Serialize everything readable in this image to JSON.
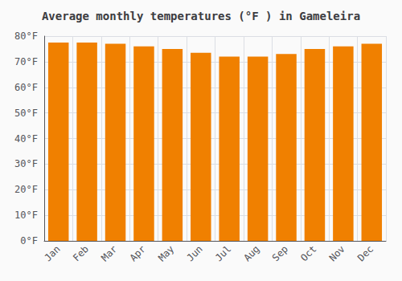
{
  "chart_data": {
    "type": "bar",
    "title": "Average monthly temperatures (°F ) in Gameleira",
    "categories": [
      "Jan",
      "Feb",
      "Mar",
      "Apr",
      "May",
      "Jun",
      "Jul",
      "Aug",
      "Sep",
      "Oct",
      "Nov",
      "Dec"
    ],
    "values": [
      77.5,
      77.5,
      77,
      76,
      75,
      73.5,
      72,
      72,
      73,
      75,
      76,
      77
    ],
    "color": "#F08000",
    "ylim": [
      0,
      80
    ],
    "yticks": [
      {
        "value": 0,
        "label": "0°F"
      },
      {
        "value": 10,
        "label": "10°F"
      },
      {
        "value": 20,
        "label": "20°F"
      },
      {
        "value": 30,
        "label": "30°F"
      },
      {
        "value": 40,
        "label": "40°F"
      },
      {
        "value": 50,
        "label": "50°F"
      },
      {
        "value": 60,
        "label": "60°F"
      },
      {
        "value": 70,
        "label": "70°F"
      },
      {
        "value": 80,
        "label": "80°F"
      }
    ],
    "grid": true
  }
}
